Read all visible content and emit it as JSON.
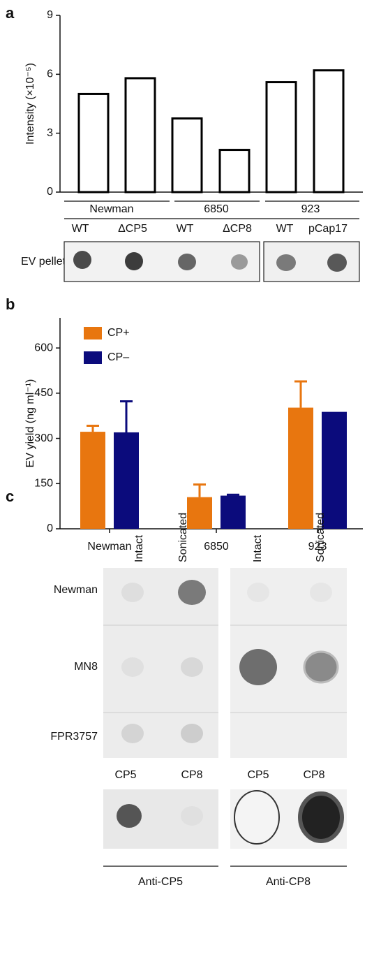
{
  "panel_labels": [
    "a",
    "b",
    "c"
  ],
  "chart_data": [
    {
      "type": "bar",
      "y_label": "Intensity (×10⁻⁵)",
      "categories": [
        "WT",
        "ΔCP5",
        "WT",
        "ΔCP8",
        "WT",
        "pCap17"
      ],
      "groups": [
        "Newman",
        "6850",
        "923"
      ],
      "values": [
        5.0,
        5.8,
        3.75,
        2.15,
        5.6,
        6.2
      ],
      "color": "#000000",
      "ylim": [
        0,
        9
      ],
      "yticks": [
        0,
        3,
        6,
        9
      ],
      "grid": false
    },
    {
      "type": "bar",
      "y_label": "EV yield (ng ml⁻¹)",
      "categories": [
        "Newman",
        "6850",
        "923"
      ],
      "series": [
        {
          "name": "CP+",
          "color": "#e8760f",
          "values": [
            322,
            105,
            402
          ],
          "errors": [
            20,
            42,
            87
          ]
        },
        {
          "name": "CP–",
          "color": "#0b0b7c",
          "values": [
            320,
            110,
            388
          ],
          "errors": [
            103,
            3,
            null
          ]
        }
      ],
      "ylim": [
        0,
        700
      ],
      "yticks": [
        0,
        150,
        300,
        450,
        600
      ],
      "grid": false,
      "legend": "upper-left"
    }
  ],
  "panel_a_blot": {
    "label": "EV pellet"
  },
  "panel_c": {
    "columns": [
      "Intact",
      "Sonicated",
      "Intact",
      "Sonicated"
    ],
    "rows": [
      "Newman",
      "MN8",
      "FPR3757"
    ],
    "control_labels": [
      "CP5",
      "CP8",
      "CP5",
      "CP8"
    ],
    "antibodies": [
      "Anti-CP5",
      "Anti-CP8"
    ]
  }
}
